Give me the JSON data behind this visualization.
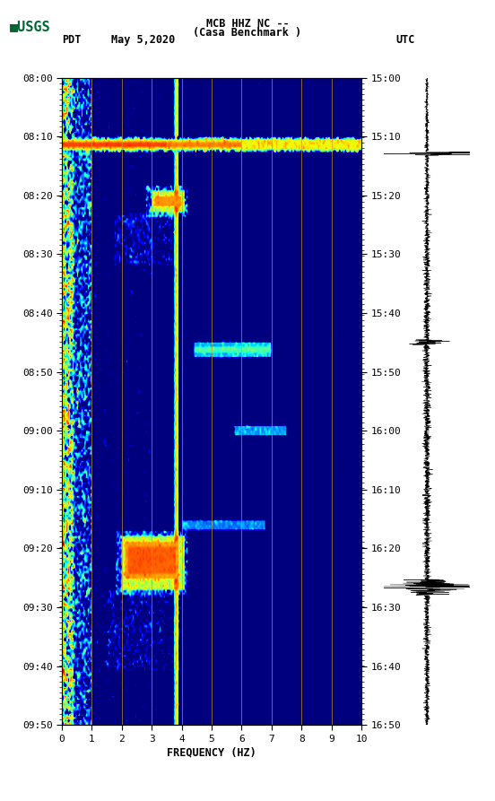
{
  "title_line1": "MCB HHZ NC --",
  "title_line2": "(Casa Benchmark )",
  "label_left_top": "PDT",
  "label_date": "May 5,2020",
  "label_right_top": "UTC",
  "y_labels_left": [
    "08:00",
    "08:10",
    "08:20",
    "08:30",
    "08:40",
    "08:50",
    "09:00",
    "09:10",
    "09:20",
    "09:30",
    "09:40",
    "09:50"
  ],
  "y_labels_right": [
    "15:00",
    "15:10",
    "15:20",
    "15:30",
    "15:40",
    "15:50",
    "16:00",
    "16:10",
    "16:20",
    "16:30",
    "16:40",
    "16:50"
  ],
  "xlabel": "FREQUENCY (HZ)",
  "xticks": [
    0,
    1,
    2,
    3,
    4,
    5,
    6,
    7,
    8,
    9,
    10
  ],
  "vertical_lines_x": [
    1.0,
    2.0,
    3.0,
    4.0,
    5.0,
    6.0,
    7.0,
    8.0,
    9.0
  ],
  "colormap": "jet",
  "vline_color": "#c8a020",
  "grid_line_color": "#808060",
  "background_color": "#ffffff"
}
